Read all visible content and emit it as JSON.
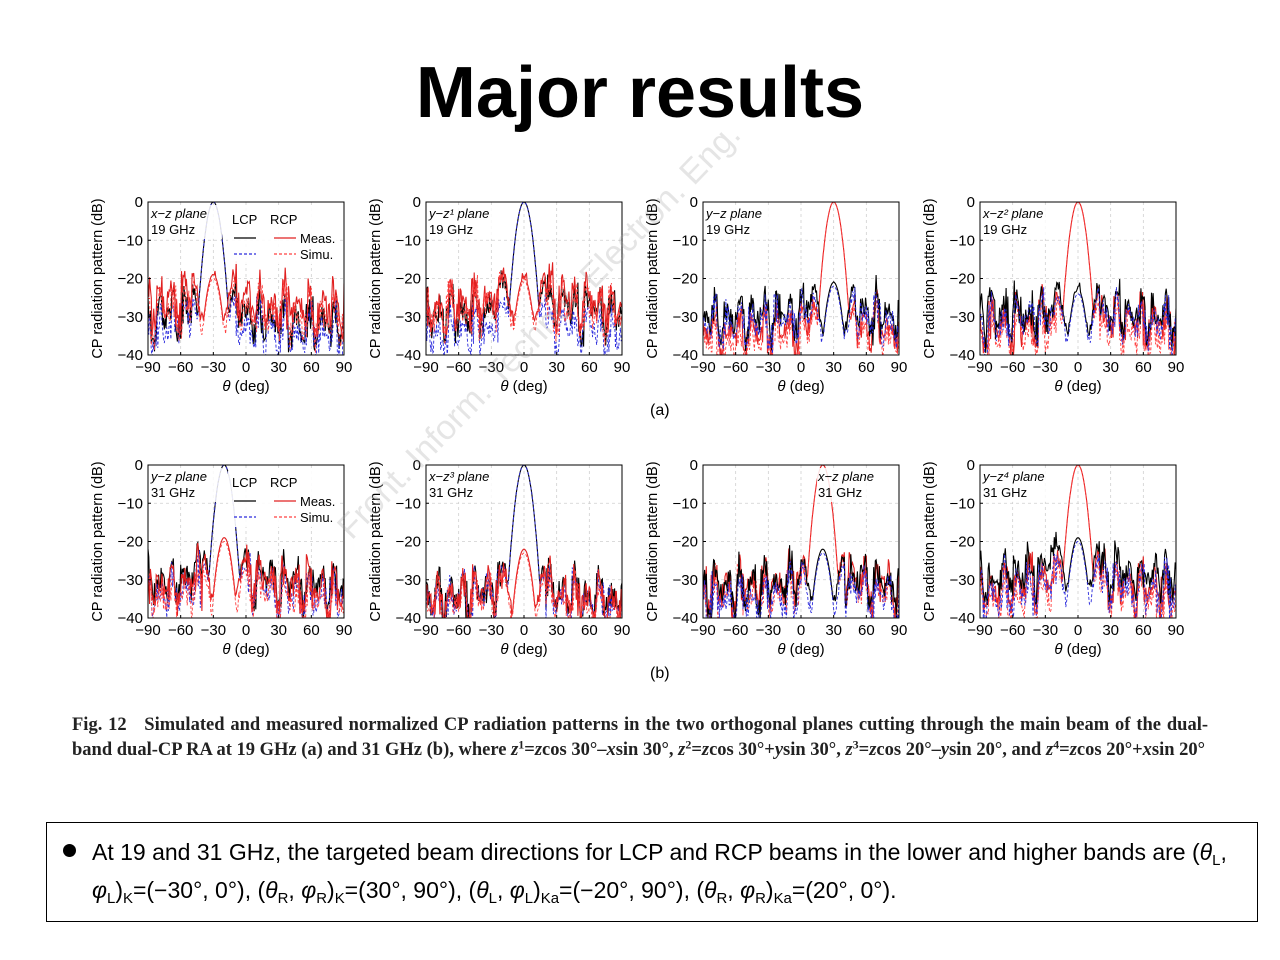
{
  "slide": {
    "title": "Major results",
    "watermark": "Front. Inform. Technol. Electron. Eng."
  },
  "figure": {
    "row_labels": [
      "(a)",
      "(b)"
    ],
    "caption_html": "Fig. 12&nbsp;&nbsp; Simulated and measured normalized CP radiation patterns in the two orthogonal planes cutting through the main beam of the dual-band dual-CP RA at 19 GHz (a) and 31 GHz (b), where <i>z</i><sup>1</sup>=<i>z</i>cos 30°–<i>x</i>sin 30°, <i>z</i><sup>2</sup>=<i>z</i>cos 30°+<i>y</i>sin 30°, <i>z</i><sup>3</sup>=<i>z</i>cos 20°–<i>y</i>sin 20°, and <i>z</i><sup>4</sup>=<i>z</i>cos 20°+<i>x</i>sin 20°"
  },
  "note": {
    "text_html": "At 19 and 31 GHz, the targeted beam directions for LCP and RCP beams in the lower and higher bands are (<i>θ</i><sub>L</sub>, <i>φ</i><sub>L</sub>)<sub>K</sub>=(−30°, 0°), (<i>θ</i><sub>R</sub>, <i>φ</i><sub>R</sub>)<sub>K</sub>=(30°, 90°), (<i>θ</i><sub>L</sub>, <i>φ</i><sub>L</sub>)<sub>Ka</sub>=(−20°, 90°), (<i>θ</i><sub>R</sub>, <i>φ</i><sub>R</sub>)<sub>Ka</sub>=(20°, 0°)."
  },
  "colors": {
    "lcp": "#000000",
    "rcp": "#e02020",
    "lcp_sim": "#2a2adc",
    "rcp_sim": "#ff4040",
    "grid": "#cfcfcf"
  },
  "chart_data": [
    {
      "type": "line",
      "panel": "(a)",
      "plane": "x−z plane",
      "freq": "19 GHz",
      "xlabel": "θ (deg)",
      "ylabel": "CP radiation pattern (dB)",
      "xlim": [
        -90,
        90
      ],
      "ylim": [
        -40,
        0
      ],
      "xticks": [
        -90,
        -60,
        -30,
        0,
        30,
        60,
        90
      ],
      "yticks": [
        0,
        -10,
        -20,
        -30,
        -40
      ],
      "grid": true,
      "legend": {
        "headers": [
          "LCP",
          "RCP"
        ],
        "rows": [
          "Meas.",
          "Simu."
        ]
      },
      "series": [
        {
          "pol": "LCP",
          "kind": "meas",
          "peak": -30,
          "peak_db": 0,
          "floor_db": -29
        },
        {
          "pol": "LCP",
          "kind": "simu",
          "peak": -30,
          "peak_db": 0,
          "floor_db": -32
        },
        {
          "pol": "RCP",
          "kind": "meas",
          "peak": -30,
          "peak_db": -19,
          "floor_db": -25
        },
        {
          "pol": "RCP",
          "kind": "simu",
          "peak": -30,
          "peak_db": -20,
          "floor_db": -28
        }
      ]
    },
    {
      "type": "line",
      "panel": "(a)",
      "plane": "y−z¹ plane",
      "freq": "19 GHz",
      "xlabel": "θ (deg)",
      "ylabel": "CP radiation pattern (dB)",
      "xlim": [
        -90,
        90
      ],
      "ylim": [
        -40,
        0
      ],
      "xticks": [
        -90,
        -60,
        -30,
        0,
        30,
        60,
        90
      ],
      "yticks": [
        0,
        -10,
        -20,
        -30,
        -40
      ],
      "grid": true,
      "series": [
        {
          "pol": "LCP",
          "kind": "meas",
          "peak": 0,
          "peak_db": 0,
          "floor_db": -27
        },
        {
          "pol": "LCP",
          "kind": "simu",
          "peak": 0,
          "peak_db": 0,
          "floor_db": -32
        },
        {
          "pol": "RCP",
          "kind": "meas",
          "peak": 0,
          "peak_db": -20,
          "floor_db": -25
        },
        {
          "pol": "RCP",
          "kind": "simu",
          "peak": 0,
          "peak_db": -21,
          "floor_db": -27
        }
      ]
    },
    {
      "type": "line",
      "panel": "(a)",
      "plane": "y−z plane",
      "freq": "19 GHz",
      "xlabel": "θ (deg)",
      "ylabel": "CP radiation pattern (dB)",
      "xlim": [
        -90,
        90
      ],
      "ylim": [
        -40,
        0
      ],
      "xticks": [
        -90,
        -60,
        -30,
        0,
        30,
        60,
        90
      ],
      "yticks": [
        0,
        -10,
        -20,
        -30,
        -40
      ],
      "grid": true,
      "series": [
        {
          "pol": "RCP",
          "kind": "meas",
          "peak": 30,
          "peak_db": 0,
          "floor_db": -32
        },
        {
          "pol": "RCP",
          "kind": "simu",
          "peak": 30,
          "peak_db": 0,
          "floor_db": -34
        },
        {
          "pol": "LCP",
          "kind": "meas",
          "peak": 30,
          "peak_db": -21,
          "floor_db": -28
        },
        {
          "pol": "LCP",
          "kind": "simu",
          "peak": 30,
          "peak_db": -22,
          "floor_db": -30
        }
      ]
    },
    {
      "type": "line",
      "panel": "(a)",
      "plane": "x−z² plane",
      "freq": "19 GHz",
      "xlabel": "θ (deg)",
      "ylabel": "CP radiation pattern (dB)",
      "xlim": [
        -90,
        90
      ],
      "ylim": [
        -40,
        0
      ],
      "xticks": [
        -90,
        -60,
        -30,
        0,
        30,
        60,
        90
      ],
      "yticks": [
        0,
        -10,
        -20,
        -30,
        -40
      ],
      "grid": true,
      "series": [
        {
          "pol": "RCP",
          "kind": "meas",
          "peak": 0,
          "peak_db": 0,
          "floor_db": -30
        },
        {
          "pol": "RCP",
          "kind": "simu",
          "peak": 0,
          "peak_db": 0,
          "floor_db": -33
        },
        {
          "pol": "LCP",
          "kind": "meas",
          "peak": 0,
          "peak_db": -23,
          "floor_db": -28
        },
        {
          "pol": "LCP",
          "kind": "simu",
          "peak": 0,
          "peak_db": -24,
          "floor_db": -30
        }
      ]
    },
    {
      "type": "line",
      "panel": "(b)",
      "plane": "y−z plane",
      "freq": "31 GHz",
      "xlabel": "θ (deg)",
      "ylabel": "CP radiation pattern (dB)",
      "xlim": [
        -90,
        90
      ],
      "ylim": [
        -40,
        0
      ],
      "xticks": [
        -90,
        -60,
        -30,
        0,
        30,
        60,
        90
      ],
      "yticks": [
        0,
        -10,
        -20,
        -30,
        -40
      ],
      "grid": true,
      "legend": {
        "headers": [
          "LCP",
          "RCP"
        ],
        "rows": [
          "Meas.",
          "Simu."
        ]
      },
      "series": [
        {
          "pol": "LCP",
          "kind": "meas",
          "peak": -20,
          "peak_db": 0,
          "floor_db": -29
        },
        {
          "pol": "LCP",
          "kind": "simu",
          "peak": -20,
          "peak_db": 0,
          "floor_db": -32
        },
        {
          "pol": "RCP",
          "kind": "meas",
          "peak": -20,
          "peak_db": -19,
          "floor_db": -30
        },
        {
          "pol": "RCP",
          "kind": "simu",
          "peak": -20,
          "peak_db": -20,
          "floor_db": -33
        }
      ]
    },
    {
      "type": "line",
      "panel": "(b)",
      "plane": "x−z³ plane",
      "freq": "31 GHz",
      "xlabel": "θ (deg)",
      "ylabel": "CP radiation pattern (dB)",
      "xlim": [
        -90,
        90
      ],
      "ylim": [
        -40,
        0
      ],
      "xticks": [
        -90,
        -60,
        -30,
        0,
        30,
        60,
        90
      ],
      "yticks": [
        0,
        -10,
        -20,
        -30,
        -40
      ],
      "grid": true,
      "series": [
        {
          "pol": "LCP",
          "kind": "meas",
          "peak": 0,
          "peak_db": 0,
          "floor_db": -33
        },
        {
          "pol": "LCP",
          "kind": "simu",
          "peak": 0,
          "peak_db": 0,
          "floor_db": -34
        },
        {
          "pol": "RCP",
          "kind": "meas",
          "peak": 0,
          "peak_db": -22,
          "floor_db": -33
        },
        {
          "pol": "RCP",
          "kind": "simu",
          "peak": 0,
          "peak_db": -23,
          "floor_db": -35
        }
      ]
    },
    {
      "type": "line",
      "panel": "(b)",
      "plane": "x−z plane",
      "freq": "31 GHz",
      "xlabel": "θ (deg)",
      "ylabel": "CP radiation pattern (dB)",
      "xlim": [
        -90,
        90
      ],
      "ylim": [
        -40,
        0
      ],
      "xticks": [
        -90,
        -60,
        -30,
        0,
        30,
        60,
        90
      ],
      "yticks": [
        0,
        -10,
        -20,
        -30,
        -40
      ],
      "grid": true,
      "series": [
        {
          "pol": "RCP",
          "kind": "meas",
          "peak": 20,
          "peak_db": 0,
          "floor_db": -30
        },
        {
          "pol": "RCP",
          "kind": "simu",
          "peak": 20,
          "peak_db": 0,
          "floor_db": -32
        },
        {
          "pol": "LCP",
          "kind": "meas",
          "peak": 20,
          "peak_db": -22,
          "floor_db": -30
        },
        {
          "pol": "LCP",
          "kind": "simu",
          "peak": 20,
          "peak_db": -23,
          "floor_db": -33
        }
      ]
    },
    {
      "type": "line",
      "panel": "(b)",
      "plane": "y−z⁴ plane",
      "freq": "31 GHz",
      "xlabel": "θ (deg)",
      "ylabel": "CP radiation pattern (dB)",
      "xlim": [
        -90,
        90
      ],
      "ylim": [
        -40,
        0
      ],
      "xticks": [
        -90,
        -60,
        -30,
        0,
        30,
        60,
        90
      ],
      "yticks": [
        0,
        -10,
        -20,
        -30,
        -40
      ],
      "grid": true,
      "series": [
        {
          "pol": "RCP",
          "kind": "meas",
          "peak": 0,
          "peak_db": 0,
          "floor_db": -30
        },
        {
          "pol": "RCP",
          "kind": "simu",
          "peak": 0,
          "peak_db": 0,
          "floor_db": -33
        },
        {
          "pol": "LCP",
          "kind": "meas",
          "peak": 0,
          "peak_db": -19,
          "floor_db": -27
        },
        {
          "pol": "LCP",
          "kind": "simu",
          "peak": 0,
          "peak_db": -20,
          "floor_db": -31
        }
      ]
    }
  ]
}
